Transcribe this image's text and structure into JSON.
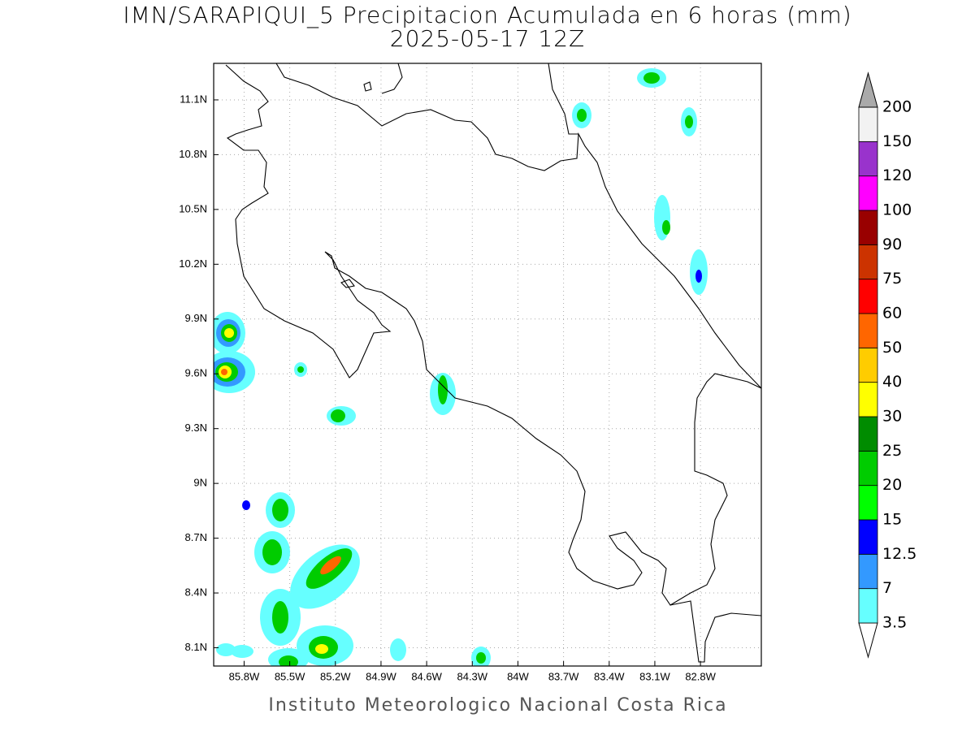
{
  "title": "IMN/SARAPIQUI_5 Precipitacion Acumulada en 6 horas (mm)",
  "subtitle": "2025-05-17 12Z",
  "footer": "Instituto Meteorologico Nacional Costa Rica",
  "map": {
    "lon_range": [
      -86.0,
      -82.4
    ],
    "lat_range": [
      8.0,
      11.3
    ],
    "grid": true,
    "lon_ticks": [
      {
        "value": -85.8,
        "label": "85.8W"
      },
      {
        "value": -85.5,
        "label": "85.5W"
      },
      {
        "value": -85.2,
        "label": "85.2W"
      },
      {
        "value": -84.9,
        "label": "84.9W"
      },
      {
        "value": -84.6,
        "label": "84.6W"
      },
      {
        "value": -84.3,
        "label": "84.3W"
      },
      {
        "value": -84.0,
        "label": "84W"
      },
      {
        "value": -83.7,
        "label": "83.7W"
      },
      {
        "value": -83.4,
        "label": "83.4W"
      },
      {
        "value": -83.1,
        "label": "83.1W"
      },
      {
        "value": -82.8,
        "label": "82.8W"
      }
    ],
    "lat_ticks": [
      {
        "value": 11.1,
        "label": "11.1N"
      },
      {
        "value": 10.8,
        "label": "10.8N"
      },
      {
        "value": 10.5,
        "label": "10.5N"
      },
      {
        "value": 10.2,
        "label": "10.2N"
      },
      {
        "value": 9.9,
        "label": "9.9N"
      },
      {
        "value": 9.6,
        "label": "9.6N"
      },
      {
        "value": 9.3,
        "label": "9.3N"
      },
      {
        "value": 9.0,
        "label": "9N"
      },
      {
        "value": 8.7,
        "label": "8.7N"
      },
      {
        "value": 8.4,
        "label": "8.4N"
      },
      {
        "value": 8.1,
        "label": "8.1N"
      }
    ]
  },
  "colorbar": {
    "levels": [
      3.5,
      7,
      12.5,
      15,
      20,
      25,
      30,
      40,
      50,
      60,
      75,
      90,
      100,
      120,
      150,
      200
    ],
    "colors": [
      "#ffffff",
      "#66ffff",
      "#3399ff",
      "#0000ff",
      "#00ff00",
      "#00cc00",
      "#008c00",
      "#ffff00",
      "#ffcc00",
      "#ff6600",
      "#ff0000",
      "#cc3300",
      "#990000",
      "#ff00ff",
      "#9933cc",
      "#f2f2f2",
      "#aaaaaa"
    ]
  }
}
